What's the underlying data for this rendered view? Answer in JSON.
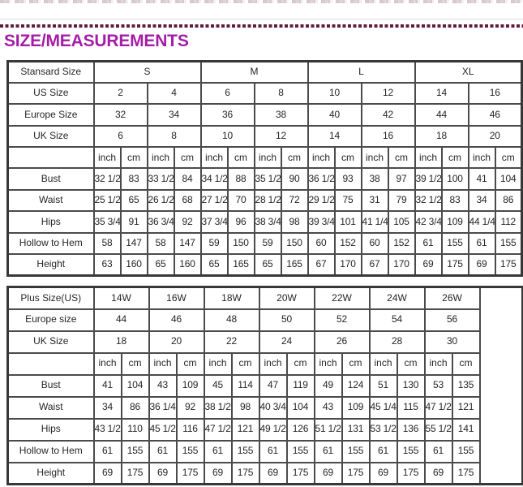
{
  "title": "SIZE/MEASUREMENTS",
  "colors": {
    "title": "#A41DA8",
    "dash_line": "#5E1F3E",
    "table_border": "#4B4B4B",
    "text": "#262626"
  },
  "standard_table": {
    "corner_label": "Stansard Size",
    "groups": [
      "S",
      "M",
      "L",
      "XL"
    ],
    "group_bold": true,
    "size_rows": [
      {
        "label": "US Size",
        "bold": true,
        "values": [
          "2",
          "4",
          "6",
          "8",
          "10",
          "12",
          "14",
          "16"
        ]
      },
      {
        "label": "Europe Size",
        "bold": false,
        "values": [
          "32",
          "34",
          "36",
          "38",
          "40",
          "42",
          "44",
          "46"
        ]
      },
      {
        "label": "UK Size",
        "bold": false,
        "values": [
          "6",
          "8",
          "10",
          "12",
          "14",
          "16",
          "18",
          "20"
        ]
      }
    ],
    "units": [
      "inch",
      "cm"
    ],
    "measure_rows": [
      {
        "label": "Bust",
        "values": [
          "32 1/2",
          "83",
          "33 1/2",
          "84",
          "34 1/2",
          "88",
          "35 1/2",
          "90",
          "36 1/2",
          "93",
          "38",
          "97",
          "39 1/2",
          "100",
          "41",
          "104"
        ]
      },
      {
        "label": "Waist",
        "values": [
          "25 1/2",
          "65",
          "26 1/2",
          "68",
          "27 1/2",
          "70",
          "28 1/2",
          "72",
          "29 1/2",
          "75",
          "31",
          "79",
          "32 1/2",
          "83",
          "34",
          "86"
        ]
      },
      {
        "label": "Hips",
        "values": [
          "35 3/4",
          "91",
          "36 3/4",
          "92",
          "37 3/4",
          "96",
          "38 3/4",
          "98",
          "39 3/4",
          "101",
          "41 1/4",
          "105",
          "42 3/4",
          "109",
          "44 1/4",
          "112"
        ]
      },
      {
        "label": "Hollow to Hem",
        "values": [
          "58",
          "147",
          "58",
          "147",
          "59",
          "150",
          "59",
          "150",
          "60",
          "152",
          "60",
          "152",
          "61",
          "155",
          "61",
          "155"
        ]
      },
      {
        "label": "Height",
        "values": [
          "63",
          "160",
          "65",
          "160",
          "65",
          "165",
          "65",
          "165",
          "67",
          "170",
          "67",
          "170",
          "69",
          "175",
          "69",
          "175"
        ]
      }
    ],
    "trailing_empty": false
  },
  "plus_table": {
    "corner_label": "Plus Size(US)",
    "groups": [
      "14W",
      "16W",
      "18W",
      "20W",
      "22W",
      "24W",
      "26W"
    ],
    "group_bold": false,
    "size_rows": [
      {
        "label": "Europe size",
        "bold": false,
        "values": [
          "44",
          "46",
          "48",
          "50",
          "52",
          "54",
          "56"
        ]
      },
      {
        "label": "UK Size",
        "bold": false,
        "values": [
          "18",
          "20",
          "22",
          "24",
          "26",
          "28",
          "30"
        ]
      }
    ],
    "units": [
      "inch",
      "cm"
    ],
    "measure_rows": [
      {
        "label": "Bust",
        "values": [
          "41",
          "104",
          "43",
          "109",
          "45",
          "114",
          "47",
          "119",
          "49",
          "124",
          "51",
          "130",
          "53",
          "135"
        ]
      },
      {
        "label": "Waist",
        "values": [
          "34",
          "86",
          "36 1/4",
          "92",
          "38 1/2",
          "98",
          "40 3/4",
          "104",
          "43",
          "109",
          "45 1/4",
          "115",
          "47 1/2",
          "121"
        ]
      },
      {
        "label": "Hips",
        "values": [
          "43 1/2",
          "110",
          "45 1/2",
          "116",
          "47 1/2",
          "121",
          "49 1/2",
          "126",
          "51 1/2",
          "131",
          "53 1/2",
          "136",
          "55 1/2",
          "141"
        ]
      },
      {
        "label": "Hollow to Hem",
        "values": [
          "61",
          "155",
          "61",
          "155",
          "61",
          "155",
          "61",
          "155",
          "61",
          "155",
          "61",
          "155",
          "61",
          "155"
        ]
      },
      {
        "label": "Height",
        "values": [
          "69",
          "175",
          "69",
          "175",
          "69",
          "175",
          "69",
          "175",
          "69",
          "175",
          "69",
          "175",
          "69",
          "175"
        ]
      }
    ],
    "trailing_empty": true
  }
}
